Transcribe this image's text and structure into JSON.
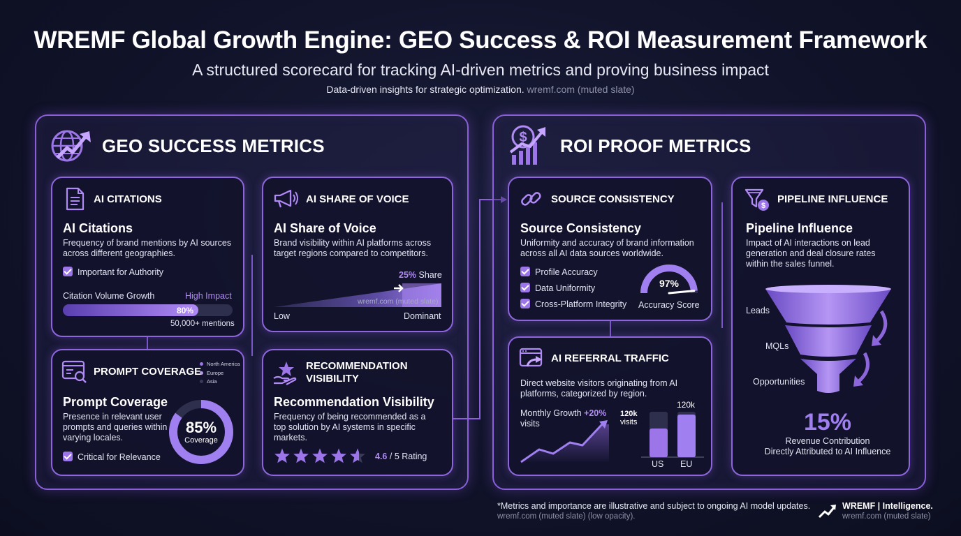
{
  "header": {
    "title": "WREMF Global Growth Engine: GEO Success & ROI Measurement Framework",
    "subtitle": "A structured scorecard for tracking AI-driven metrics and proving business impact",
    "tagline": "Data-driven insights for strategic optimization.",
    "tagline_muted": "wremf.com (muted slate)"
  },
  "geo": {
    "heading": "GEO SUCCESS METRICS",
    "icon": "globe-growth-icon",
    "citations": {
      "head": "AI CITATIONS",
      "title": "AI Citations",
      "desc": "Frequency of brand mentions by AI sources across different geographies.",
      "check": "Important for Authority",
      "bar_label": "Citation Volume Growth",
      "bar_tag": "High Impact",
      "bar_value": "80%",
      "bar_fraction": 0.8,
      "bar_note": "50,000+ mentions"
    },
    "share": {
      "head": "AI SHARE OF VOICE",
      "title": "AI Share of Voice",
      "desc": "Brand visibility within AI platforms across target regions compared to competitors.",
      "share_pct": "25%",
      "share_word": "Share",
      "watermark": "wremf.com (muted slate)",
      "low": "Low",
      "high": "Dominant"
    },
    "prompt": {
      "head": "PROMPT COVERAGE",
      "title": "Prompt Coverage",
      "desc": "Presence in relevant user prompts and queries within varying locales.",
      "check": "Critical for Relevance",
      "legend": [
        "North America",
        "Europe",
        "Asia"
      ],
      "ring_value": "85%",
      "ring_label": "Coverage",
      "ring_fraction": 0.85
    },
    "recommendation": {
      "head_line1": "RECOMMENDATION",
      "head_line2": "VISIBILITY",
      "title": "Recommendation Visibility",
      "desc": "Frequency of being recommended as a top solution by AI systems in specific markets.",
      "rating": "4.6",
      "rating_suffix": "/ 5 Rating",
      "stars_value": 4.6
    }
  },
  "roi": {
    "heading": "ROI PROOF METRICS",
    "icon": "dollar-growth-icon",
    "consistency": {
      "head": "SOURCE CONSISTENCY",
      "title": "Source Consistency",
      "desc": "Uniformity and accuracy of brand information across all AI data sources worldwide.",
      "checks": [
        "Profile Accuracy",
        "Data Uniformity",
        "Cross-Platform Integrity"
      ],
      "gauge_value": "97%",
      "gauge_label": "Accuracy Score",
      "gauge_fraction": 0.97
    },
    "referral": {
      "head": "AI REFERRAL TRAFFIC",
      "desc": "Direct website visitors originating from AI platforms, categorized by region.",
      "growth_label": "Monthly Growth",
      "growth_value": "+20%",
      "growth_unit": "visits",
      "bar_value_left": "120k",
      "bar_unit_left": "visits",
      "bar_value_right": "120k",
      "regions": [
        "US",
        "EU"
      ]
    },
    "pipeline": {
      "head": "PIPELINE INFLUENCE",
      "title": "Pipeline Influence",
      "desc": "Impact of AI interactions on lead generation and deal closure rates within the sales funnel.",
      "stages": [
        "Leads",
        "MQLs",
        "Opportunities"
      ],
      "big_value": "15%",
      "caption1": "Revenue Contribution",
      "caption2": "Directly Attributed to AI Influence"
    }
  },
  "footer": {
    "note": "*Metrics and importance are illustrative and subject to ongoing AI model updates.",
    "note_muted": "wremf.com (muted slate) (low opacity).",
    "brand": "WREMF | Intelligence.",
    "brand_muted": "wremf.com (muted slate)"
  },
  "colors": {
    "accent": "#9c76e8",
    "accent_light": "#b08af5",
    "background": "#11132a"
  }
}
